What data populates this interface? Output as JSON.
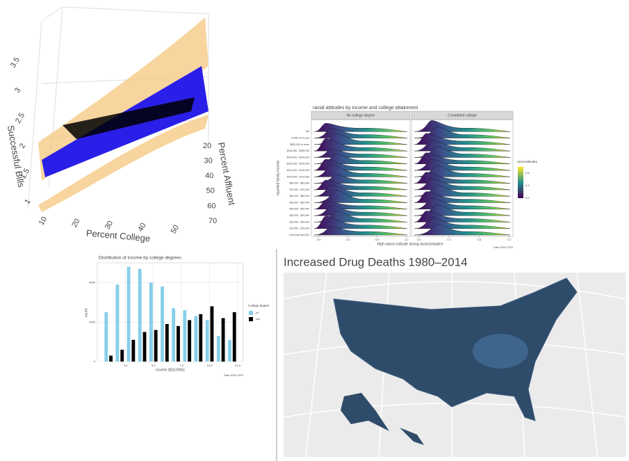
{
  "chart_data": [
    {
      "type": "surface3d",
      "zlabel": "Successful Bills",
      "ylabel": "Percent Affluent",
      "xlabel": "Percent College",
      "xlim": [
        10,
        50
      ],
      "xticks": [
        10,
        20,
        30,
        40,
        50
      ],
      "ylim": [
        20,
        70
      ],
      "yticks": [
        20,
        30,
        40,
        50,
        60,
        70
      ],
      "zlim": [
        1,
        3.5
      ],
      "zticks": [
        1,
        1.5,
        2,
        2.5,
        3,
        3.5
      ]
    },
    {
      "type": "ridgeline",
      "title": "racial attitudes by income and college attainment",
      "facets": [
        "No college degree",
        "Completed college"
      ],
      "ylabel": "reported family income",
      "xlabel": "High values indicate strong racial prejudice",
      "caption": "Data: 2016 CCES",
      "categories": [
        "NA",
        "Prefer not to say",
        "$500,000 or more",
        "$250,000 - $499,999",
        "$200,000 - $249,999",
        "$150,000 - $199,999",
        "$120,000 - $149,999",
        "$100,000 - $119,999",
        "$80,000 - $99,999",
        "$70,000 - $79,999",
        "$60,000 - $69,999",
        "$50,000 - $59,999",
        "$40,000 - $49,999",
        "$30,000 - $39,999",
        "$20,000 - $29,999",
        "$10,000 - $19,999",
        "Less than $10,000"
      ],
      "xlim": [
        -0.1,
        1.25
      ],
      "xticks": [
        {
          "value": 0,
          "label": "0.0"
        },
        0.4,
        0.8,
        1.2
      ],
      "legend_title": "racial attitudes",
      "legend_ticks": [
        {
          "value": 0,
          "label": "0.0"
        },
        0.4,
        0.8
      ]
    },
    {
      "type": "bar",
      "title": "Distribution of income by college degrees",
      "xlabel": "income ($10,000s)",
      "ylabel": "count",
      "caption": "Data: 2016 CCES",
      "legend_title": "College degree",
      "x": [
        1,
        2,
        3,
        4,
        5,
        6,
        7,
        8,
        9,
        10,
        11,
        12
      ],
      "series": [
        {
          "name": "no",
          "color": "#87ceeb",
          "values": [
            2500,
            3900,
            4800,
            4700,
            4000,
            3800,
            2700,
            2600,
            2300,
            2100,
            1300,
            1100
          ]
        },
        {
          "name": "yes",
          "color": "#000000",
          "values": [
            300,
            600,
            1100,
            1500,
            1600,
            1900,
            1800,
            2100,
            2400,
            2800,
            2200,
            2500
          ]
        }
      ],
      "xlim": [
        0,
        13
      ],
      "xticks": [
        {
          "value": 2.5,
          "label": "2.5"
        },
        {
          "value": 5,
          "label": "5.0"
        },
        {
          "value": 7.5,
          "label": "7.5"
        },
        {
          "value": 10,
          "label": "10.0"
        },
        {
          "value": 12.5,
          "label": "12.5"
        }
      ],
      "ylim": [
        0,
        5000
      ],
      "yticks": [
        0,
        2000,
        4000
      ]
    },
    {
      "type": "map",
      "title": "Increased Drug Deaths 1980–2014"
    }
  ]
}
